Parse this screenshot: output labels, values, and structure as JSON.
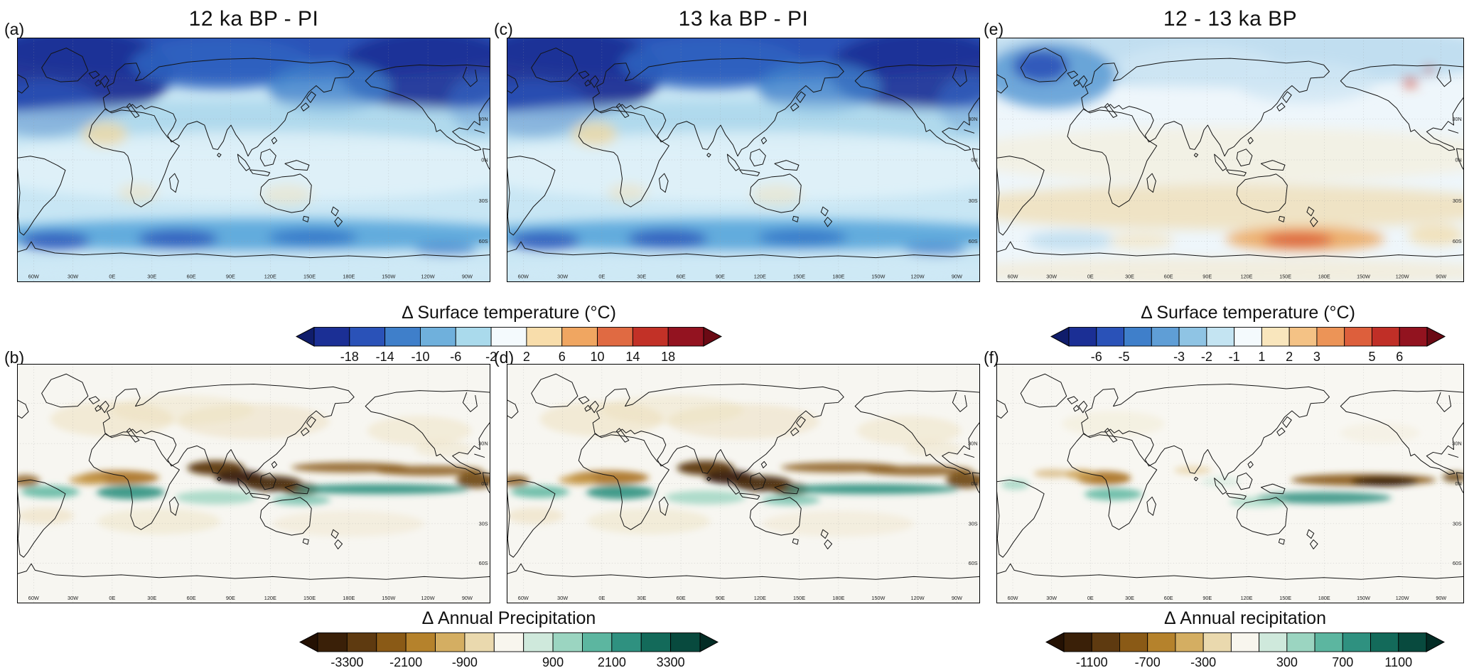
{
  "figure": {
    "panels": [
      {
        "id": "a",
        "letter": "(a)",
        "title": "12 ka BP - PI",
        "variable": "surface temperature anomaly"
      },
      {
        "id": "b",
        "letter": "(b)",
        "variable": "annual precipitation anomaly"
      },
      {
        "id": "c",
        "letter": "(c)",
        "title": "13 ka BP - PI",
        "variable": "surface temperature anomaly"
      },
      {
        "id": "d",
        "letter": "(d)",
        "variable": "annual precipitation anomaly"
      },
      {
        "id": "e",
        "letter": "(e)",
        "title": "12 - 13 ka BP",
        "variable": "surface temperature difference"
      },
      {
        "id": "f",
        "letter": "(f)",
        "variable": "annual precipitation difference"
      }
    ]
  },
  "axes": {
    "lon_ticks": [
      "60W",
      "30W",
      "0E",
      "30E",
      "60E",
      "90E",
      "120E",
      "150E",
      "180E",
      "150W",
      "120W",
      "90W"
    ],
    "lat_ticks": [
      "30N",
      "0N",
      "30S",
      "60S"
    ]
  },
  "colorbars": {
    "temp_ac": {
      "label": "Δ Surface temperature (°C)",
      "tick_labels": [
        "-18",
        "-14",
        "-10",
        "-6",
        "-2",
        "2",
        "6",
        "10",
        "14",
        "18"
      ],
      "tick_indices": [
        1,
        2,
        3,
        4,
        5,
        6,
        7,
        8,
        9,
        10
      ],
      "segment_colors": [
        "#1b2f95",
        "#2a52b8",
        "#3f7fca",
        "#6fb0dc",
        "#aadaec",
        "#f4fafd",
        "#f8ddab",
        "#f0a661",
        "#e06a42",
        "#c23127",
        "#931320"
      ],
      "arrow_left": "#101d6b",
      "arrow_right": "#6b0a14"
    },
    "temp_e": {
      "label": "Δ Surface temperature (°C)",
      "tick_labels": [
        "-6",
        "-5",
        "-3",
        "-2",
        "-1",
        "1",
        "2",
        "3",
        "5",
        "6"
      ],
      "tick_indices": [
        1,
        2,
        4,
        5,
        6,
        7,
        8,
        9,
        11,
        12
      ],
      "segment_colors": [
        "#1b2f95",
        "#2a52b8",
        "#3f7fca",
        "#5f9ed6",
        "#8fc4e4",
        "#c4e4f2",
        "#f4fafd",
        "#f9e6bd",
        "#f4c285",
        "#ec9457",
        "#dd5f3c",
        "#c02f27",
        "#92131f"
      ],
      "arrow_left": "#101d6b",
      "arrow_right": "#6b0a14"
    },
    "precip_bd": {
      "label": "Δ Annual Precipitation",
      "tick_labels": [
        "-3300",
        "-2100",
        "-900",
        "900",
        "2100",
        "3300"
      ],
      "tick_indices": [
        1,
        3,
        5,
        8,
        10,
        12
      ],
      "segment_colors": [
        "#3a2008",
        "#5e3a10",
        "#8a5a16",
        "#b5822c",
        "#d4ae62",
        "#ead9ae",
        "#f8f6ee",
        "#cfe9dc",
        "#9bd5c1",
        "#5cb6a0",
        "#2f9180",
        "#136a5a",
        "#084a3e"
      ],
      "arrow_left": "#241103",
      "arrow_right": "#032c25"
    },
    "precip_f": {
      "label": "Δ Annual recipitation",
      "tick_labels": [
        "-1100",
        "-700",
        "-300",
        "300",
        "700",
        "1100"
      ],
      "tick_indices": [
        1,
        3,
        5,
        8,
        10,
        12
      ],
      "segment_colors": [
        "#3a2008",
        "#5e3a10",
        "#8a5a16",
        "#b5822c",
        "#d4ae62",
        "#ead9ae",
        "#f8f6ee",
        "#cfe9dc",
        "#9bd5c1",
        "#5cb6a0",
        "#2f9180",
        "#136a5a",
        "#084a3e"
      ],
      "arrow_left": "#241103",
      "arrow_right": "#032c25"
    }
  },
  "chart_data": [
    {
      "panel": "a",
      "type": "heatmap",
      "title": "12 ka BP - PI",
      "variable": "Δ Surface temperature (°C)",
      "map_extent": {
        "lon_ticks": [
          "60W",
          "30W",
          "0E",
          "30E",
          "60E",
          "90E",
          "120E",
          "150E",
          "180E",
          "150W",
          "120W",
          "90W"
        ],
        "lat_ticks": [
          "30N",
          "0N",
          "30S",
          "60S"
        ]
      },
      "colorbar_ticks": [
        -18,
        -14,
        -10,
        -6,
        -2,
        2,
        6,
        10,
        14,
        18
      ],
      "summary": "Strong cooling of -18 to -10 °C over high northern latitudes (North Atlantic, Greenland, Laurentide North America, Siberia); moderate cooling of -6 to -2 °C in mid-latitudes; weak cooling near 0 to -2 °C in the tropics; slight warm patches over the western Sahara and southern subtropical land; cooling band of -6 to -14 °C along the Southern Ocean near 60S."
    },
    {
      "panel": "b",
      "type": "heatmap",
      "title": "12 ka BP - PI",
      "variable": "Δ Annual Precipitation",
      "colorbar_ticks": [
        -3300,
        -2100,
        -900,
        900,
        2100,
        3300
      ],
      "summary": "Strong drying (brown, down to about -3300) along the ITCZ over Sahel Africa, India, Southeast Asia, the Maritime Continent and a zonal band across the subtropical North Pacific and northern South America; wetting (teal, up to about +3300) along the equatorial Atlantic, Gulf of Guinea, southern Indian Ocean and equatorial Pacific just south of the dry band; weak tan drying over many mid-latitude areas."
    },
    {
      "panel": "c",
      "type": "heatmap",
      "title": "13 ka BP - PI",
      "variable": "Δ Surface temperature (°C)",
      "colorbar_ticks": [
        -18,
        -14,
        -10,
        -6,
        -2,
        2,
        6,
        10,
        14,
        18
      ],
      "summary": "Pattern nearly identical to panel (a): deep cooling over northern high latitudes and the North Atlantic, mild tropical cooling, Southern Ocean cooling band near 60S, small warm patches over subtropical land."
    },
    {
      "panel": "d",
      "type": "heatmap",
      "title": "13 ka BP - PI",
      "variable": "Δ Annual Precipitation",
      "colorbar_ticks": [
        -3300,
        -2100,
        -900,
        900,
        2100,
        3300
      ],
      "summary": "Pattern nearly identical to panel (b): ITCZ drying over Africa through the Maritime Continent and subtropical Pacific, with equatorial oceanic wetting bands to the south."
    },
    {
      "panel": "e",
      "type": "heatmap",
      "title": "12 - 13 ka BP",
      "variable": "Δ Surface temperature (°C)",
      "colorbar_ticks": [
        -6,
        -5,
        -3,
        -2,
        -1,
        1,
        2,
        3,
        5,
        6
      ],
      "summary": "Small differences overall: residual cooling of -1 to -3 °C across the northern high latitudes with a -3 to -6 °C core over Greenland and the North Atlantic; small warm spots over western North America; weak warming of +1 to +2 °C over the southern mid-latitudes with +3 to +6 °C warming near 60S in the Pacific sector."
    },
    {
      "panel": "f",
      "type": "heatmap",
      "title": "12 - 13 ka BP",
      "variable": "Δ Annual recipitation",
      "colorbar_ticks": [
        -1100,
        -700,
        -300,
        300,
        700,
        1100
      ],
      "summary": "Mostly near-zero change: drying of -300 to -1100 over equatorial Africa and a band across the central tropical Pacific; wetting of +300 to +1100 just south of those bands over the Gulf of Guinea region and the south-central Pacific."
    }
  ]
}
